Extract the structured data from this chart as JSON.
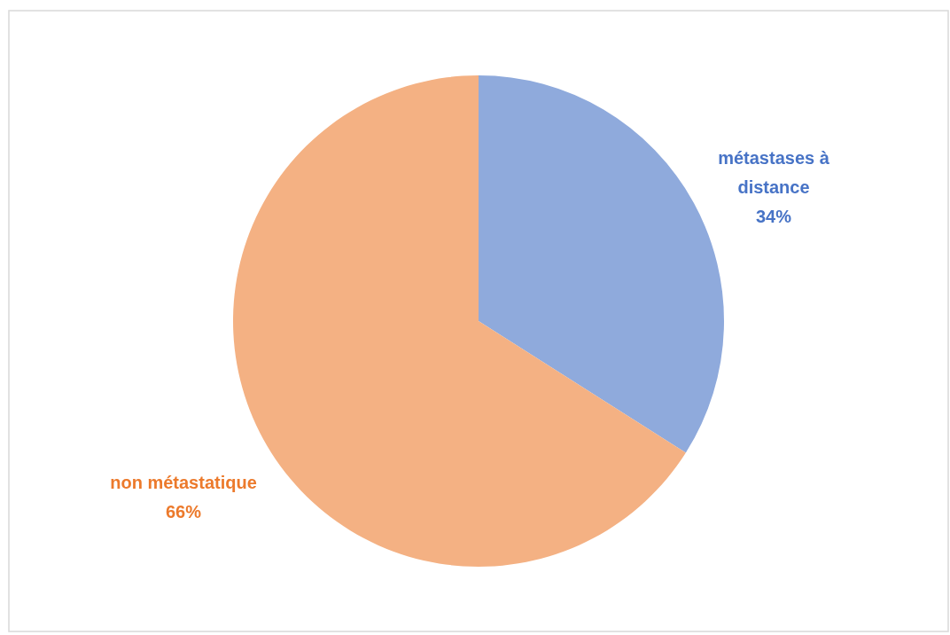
{
  "chart_data": {
    "type": "pie",
    "categories": [
      "métastases à distance",
      "non métastatique"
    ],
    "values": [
      34,
      66
    ],
    "colors": [
      "#8faadc",
      "#f4b183"
    ],
    "value_labels": [
      "34%",
      "66%"
    ]
  }
}
